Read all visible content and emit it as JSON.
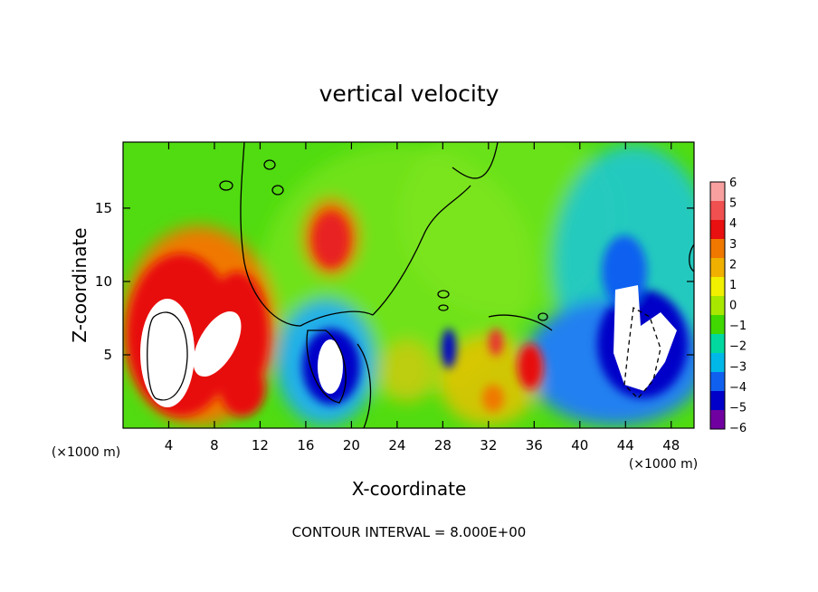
{
  "chart_data": {
    "type": "heatmap",
    "title": "vertical velocity",
    "xlabel": "X-coordinate",
    "ylabel": "Z-coordinate",
    "x_unit_left": "(×1000 m)",
    "x_unit_right": "(×1000 m)",
    "footer": "CONTOUR INTERVAL = 8.000E+00",
    "xlim": [
      0,
      50
    ],
    "ylim": [
      0,
      19.5
    ],
    "x_ticks": [
      "4",
      "8",
      "12",
      "16",
      "20",
      "24",
      "28",
      "32",
      "36",
      "40",
      "44",
      "48"
    ],
    "x_tick_values": [
      4,
      8,
      12,
      16,
      20,
      24,
      28,
      32,
      36,
      40,
      44,
      48
    ],
    "y_ticks": [
      "5",
      "10",
      "15"
    ],
    "y_tick_values": [
      5,
      10,
      15
    ],
    "colorbar": {
      "labels": [
        "6",
        "5",
        "4",
        "3",
        "2",
        "1",
        "0",
        "−1",
        "−2",
        "−3",
        "−4",
        "−5",
        "−6"
      ],
      "values": [
        6,
        5,
        4,
        3,
        2,
        1,
        0,
        -1,
        -2,
        -3,
        -4,
        -5,
        -6
      ],
      "colors": [
        "#f8a0a0",
        "#f05050",
        "#e81010",
        "#f07800",
        "#f0b000",
        "#f0f000",
        "#a8e800",
        "#40d800",
        "#00d8a0",
        "#00b8e8",
        "#1060f0",
        "#0000c8",
        "#7000a0"
      ]
    },
    "features": [
      {
        "kind": "updraft",
        "x": 5,
        "z": 5.5,
        "peak": "> 6"
      },
      {
        "kind": "updraft",
        "x": 10,
        "z": 4.5,
        "peak": "> 6"
      },
      {
        "kind": "updraft",
        "x": 17.5,
        "z": 13,
        "peak": 4
      },
      {
        "kind": "downdraft",
        "x": 18,
        "z": 4.5,
        "peak": "< -6"
      },
      {
        "kind": "downdraft",
        "x": 44,
        "z": 5.5,
        "peak": "< -6"
      }
    ]
  }
}
